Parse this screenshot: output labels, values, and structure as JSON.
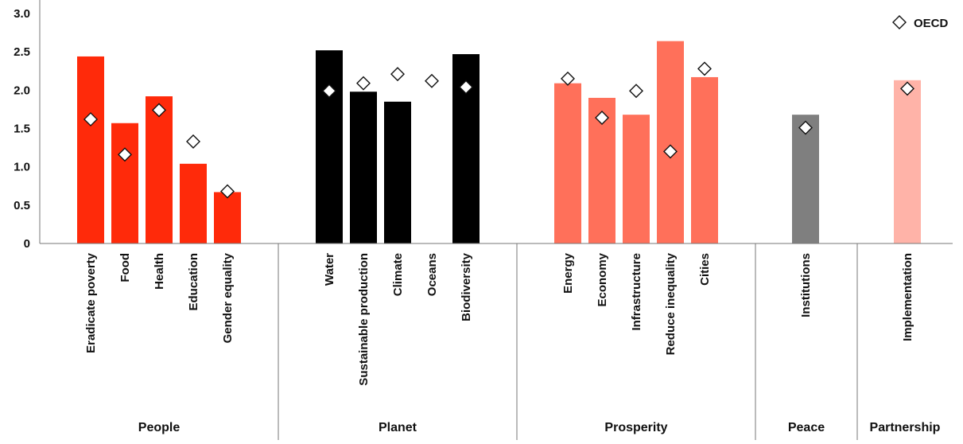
{
  "chart_data": {
    "type": "bar",
    "title": "",
    "xlabel": "",
    "ylabel": "",
    "ylim": [
      0,
      3.0
    ],
    "y_ticks": [
      "0",
      "0.5",
      "1.0",
      "1.5",
      "2.0",
      "2.5",
      "3.0"
    ],
    "grid": false,
    "legend": {
      "position": "top-right",
      "label": "OECD"
    },
    "groups": [
      {
        "name": "People",
        "color": "#ff2a0a",
        "items": [
          {
            "label": "Eradicate poverty",
            "value": 2.44,
            "oecd": 1.62
          },
          {
            "label": "Food",
            "value": 1.57,
            "oecd": 1.16
          },
          {
            "label": "Health",
            "value": 1.92,
            "oecd": 1.74
          },
          {
            "label": "Education",
            "value": 1.04,
            "oecd": 1.33
          },
          {
            "label": "Gender equality",
            "value": 0.67,
            "oecd": 0.68
          }
        ]
      },
      {
        "name": "Planet",
        "color": "#000000",
        "items": [
          {
            "label": "Water",
            "value": 2.52,
            "oecd": 1.99
          },
          {
            "label": "Sustainable production",
            "value": 1.98,
            "oecd": 2.09
          },
          {
            "label": "Climate",
            "value": 1.85,
            "oecd": 2.21
          },
          {
            "label": "Oceans",
            "value": null,
            "oecd": 2.12
          },
          {
            "label": "Biodiversity",
            "value": 2.47,
            "oecd": 2.04
          }
        ]
      },
      {
        "name": "Prosperity",
        "color": "#ff705a",
        "items": [
          {
            "label": "Energy",
            "value": 2.09,
            "oecd": 2.15
          },
          {
            "label": "Economy",
            "value": 1.9,
            "oecd": 1.64
          },
          {
            "label": "Infrastructure",
            "value": 1.68,
            "oecd": 1.99
          },
          {
            "label": "Reduce inequality",
            "value": 2.64,
            "oecd": 1.2
          },
          {
            "label": "Cities",
            "value": 2.17,
            "oecd": 2.28
          }
        ]
      },
      {
        "name": "Peace",
        "color": "#7f7f7f",
        "items": [
          {
            "label": "Institutions",
            "value": 1.68,
            "oecd": 1.51
          }
        ]
      },
      {
        "name": "Partnership",
        "color": "#ffb3a8",
        "items": [
          {
            "label": "Implementation",
            "value": 2.13,
            "oecd": 2.02
          }
        ]
      }
    ]
  }
}
